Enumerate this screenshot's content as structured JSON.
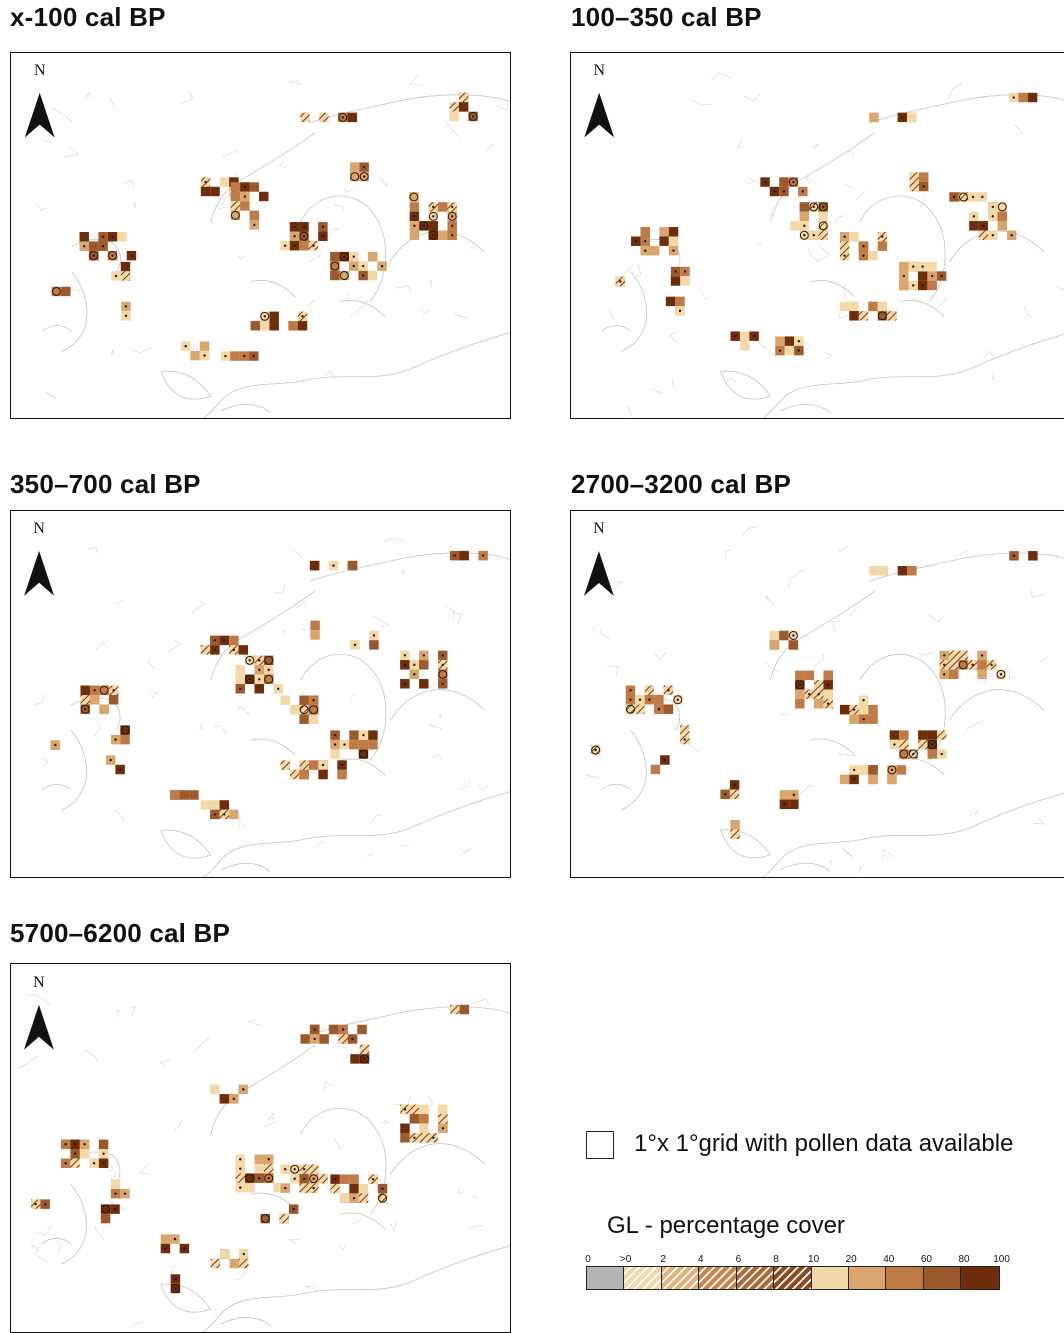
{
  "panels": [
    {
      "title": "x-100 cal BP",
      "north": "N"
    },
    {
      "title": "100–350 cal BP",
      "north": "N"
    },
    {
      "title": "350–700 cal BP",
      "north": "N"
    },
    {
      "title": "2700–3200 cal BP",
      "north": "N"
    },
    {
      "title": "5700–6200 cal BP",
      "north": "N"
    }
  ],
  "legend": {
    "grid_label": "1°x 1°grid with pollen data available",
    "title": "GL - percentage cover",
    "scale_ticks": [
      "0",
      ">0",
      "2",
      "4",
      "6",
      "8",
      "10",
      "20",
      "40",
      "60",
      "80",
      "100"
    ],
    "classes": [
      {
        "color": "#b5b5b5",
        "hatched": false
      },
      {
        "color": "#f3d9a8",
        "hatched": true
      },
      {
        "color": "#e2b07c",
        "hatched": true
      },
      {
        "color": "#c98650",
        "hatched": true
      },
      {
        "color": "#b06a3a",
        "hatched": true
      },
      {
        "color": "#8f4a22",
        "hatched": true
      },
      {
        "color": "#f3d9a8",
        "hatched": false
      },
      {
        "color": "#dba66e",
        "hatched": false
      },
      {
        "color": "#bf7a45",
        "hatched": false
      },
      {
        "color": "#9c5a2c",
        "hatched": false
      },
      {
        "color": "#6e2e0c",
        "hatched": false
      }
    ]
  }
}
